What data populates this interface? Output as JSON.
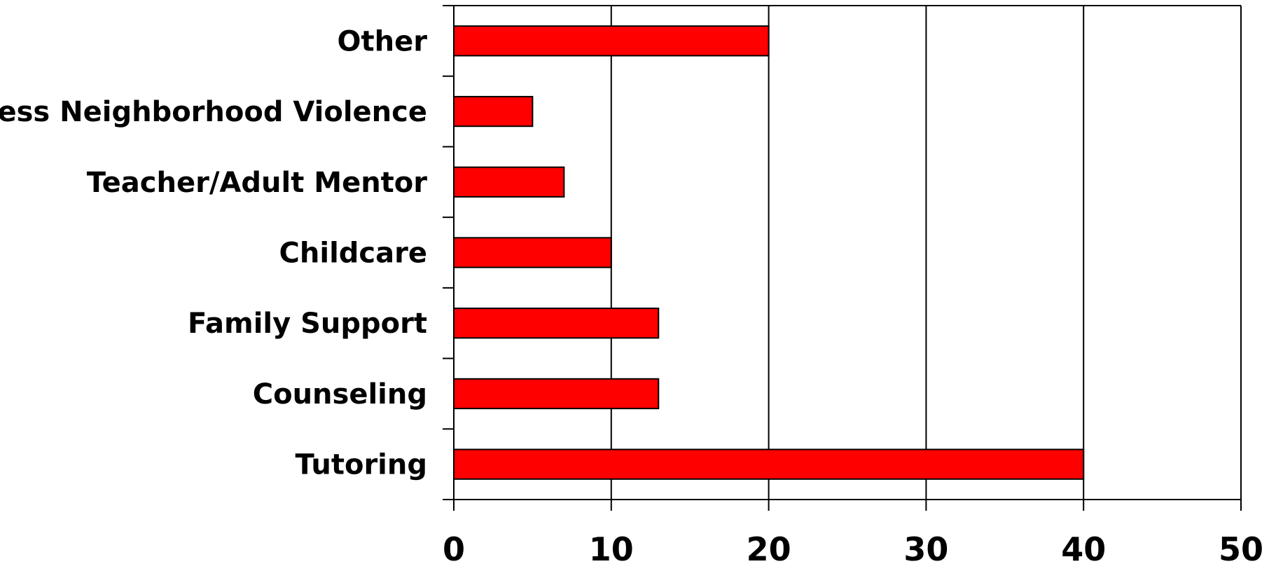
{
  "chart_data": {
    "type": "bar",
    "orientation": "horizontal",
    "categories": [
      "Other",
      "Less Neighborhood Violence",
      "Teacher/Adult Mentor",
      "Childcare",
      "Family Support",
      "Counseling",
      "Tutoring"
    ],
    "values": [
      20,
      5,
      7,
      10,
      13,
      13,
      40
    ],
    "xlim": [
      0,
      50
    ],
    "x_ticks": [
      "0",
      "10",
      "20",
      "30",
      "40",
      "50"
    ],
    "grid": "vertical",
    "legend": "none",
    "bar_color": "#ff0000",
    "bar_outline": "#000000"
  }
}
